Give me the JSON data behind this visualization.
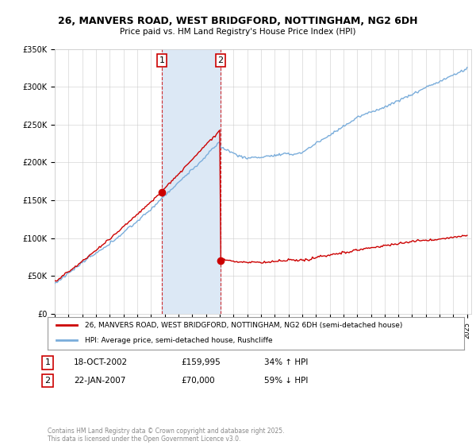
{
  "title_line1": "26, MANVERS ROAD, WEST BRIDGFORD, NOTTINGHAM, NG2 6DH",
  "title_line2": "Price paid vs. HM Land Registry's House Price Index (HPI)",
  "ylabel_ticks": [
    "£0",
    "£50K",
    "£100K",
    "£150K",
    "£200K",
    "£250K",
    "£300K",
    "£350K"
  ],
  "ylabel_values": [
    0,
    50000,
    100000,
    150000,
    200000,
    250000,
    300000,
    350000
  ],
  "xlim_start": 1995,
  "xlim_end": 2025,
  "ylim_max": 350000,
  "t1_year": 2002.79,
  "t1_price": 159995,
  "t2_year": 2007.06,
  "t2_price": 70000,
  "transaction1": {
    "date_str": "18-OCT-2002",
    "price_str": "£159,995",
    "pct": "34% ↑ HPI"
  },
  "transaction2": {
    "date_str": "22-JAN-2007",
    "price_str": "£70,000",
    "pct": "59% ↓ HPI"
  },
  "legend_line1": "26, MANVERS ROAD, WEST BRIDGFORD, NOTTINGHAM, NG2 6DH (semi-detached house)",
  "legend_line2": "HPI: Average price, semi-detached house, Rushcliffe",
  "footer": "Contains HM Land Registry data © Crown copyright and database right 2025.\nThis data is licensed under the Open Government Licence v3.0.",
  "red_color": "#cc0000",
  "blue_color": "#7aaddb",
  "highlight_color": "#dce8f5"
}
